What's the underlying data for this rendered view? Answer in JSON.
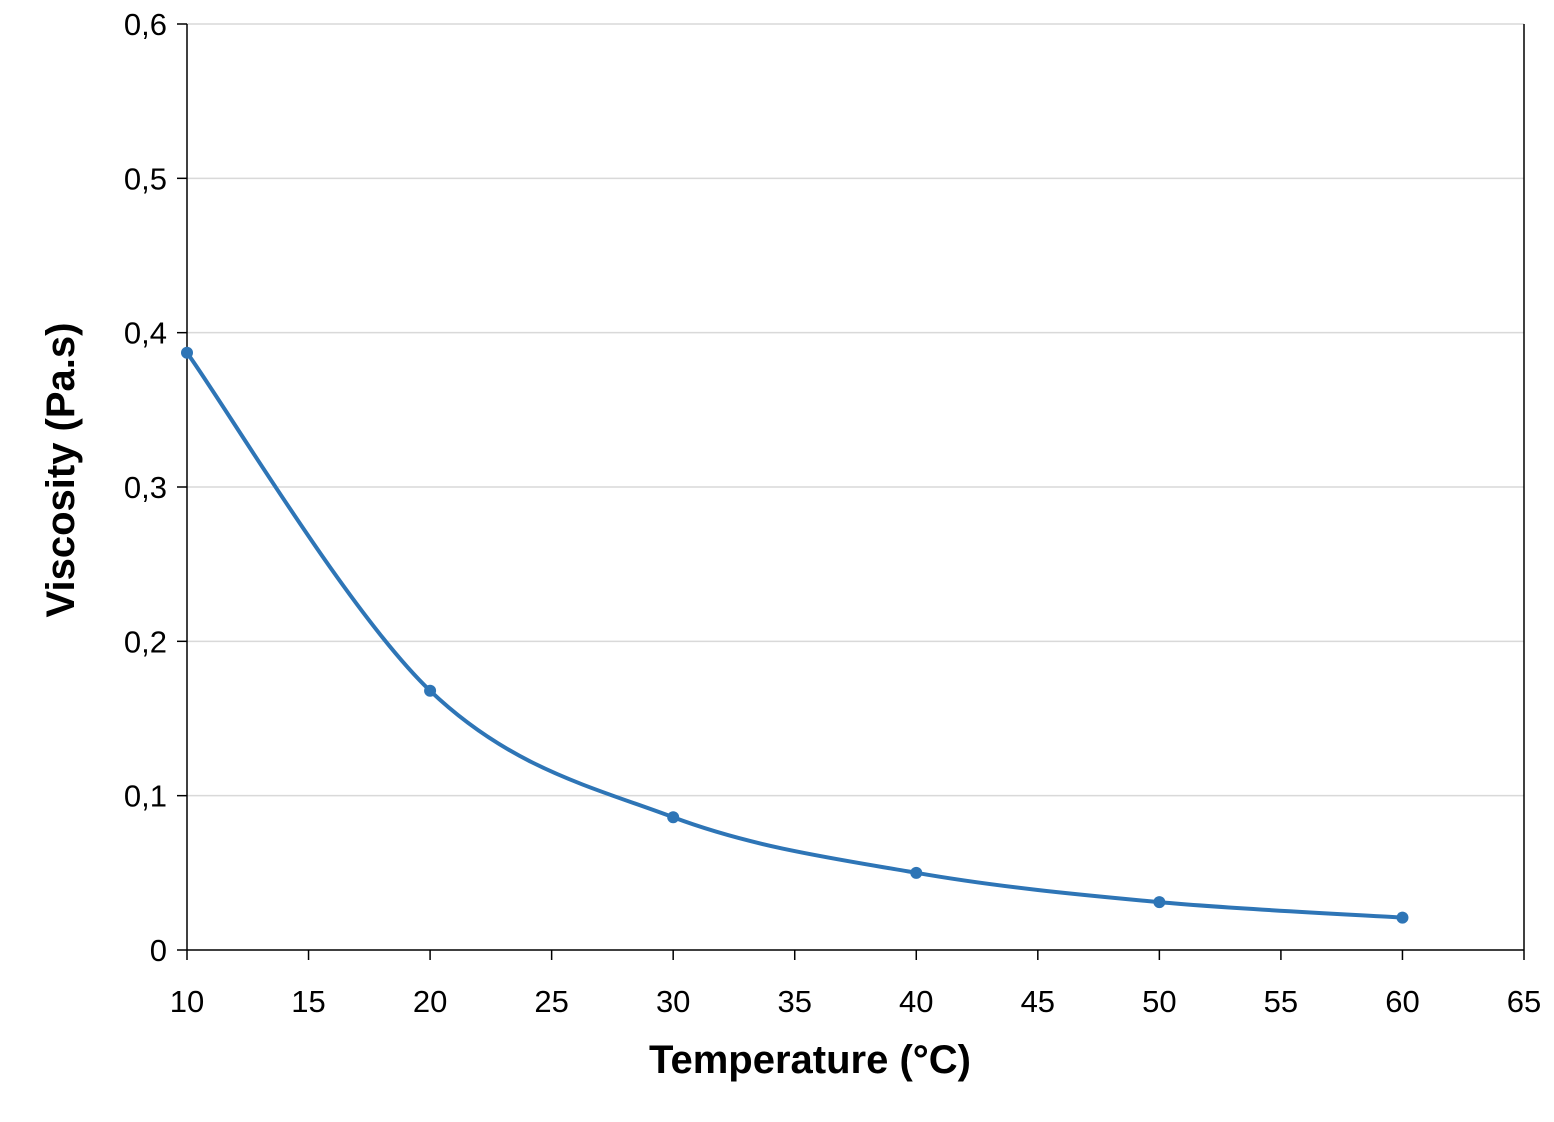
{
  "chart_data": {
    "type": "line",
    "title": "",
    "xlabel": "Temperature (°C)",
    "ylabel": "Viscosity (Pa.s)",
    "xlim": [
      10,
      65
    ],
    "ylim": [
      0,
      0.6
    ],
    "x_ticks": [
      "10",
      "15",
      "20",
      "25",
      "30",
      "35",
      "40",
      "45",
      "50",
      "55",
      "60",
      "65"
    ],
    "y_ticks": [
      "0",
      "0,1",
      "0,2",
      "0,3",
      "0,4",
      "0,5",
      "0,6"
    ],
    "grid": "horizontal",
    "smoothed": true,
    "markers": true,
    "series": [
      {
        "color": "#2e75b6",
        "x": [
          10,
          20,
          30,
          40,
          50,
          60
        ],
        "y": [
          0.387,
          0.168,
          0.086,
          0.05,
          0.031,
          0.021
        ]
      }
    ]
  }
}
